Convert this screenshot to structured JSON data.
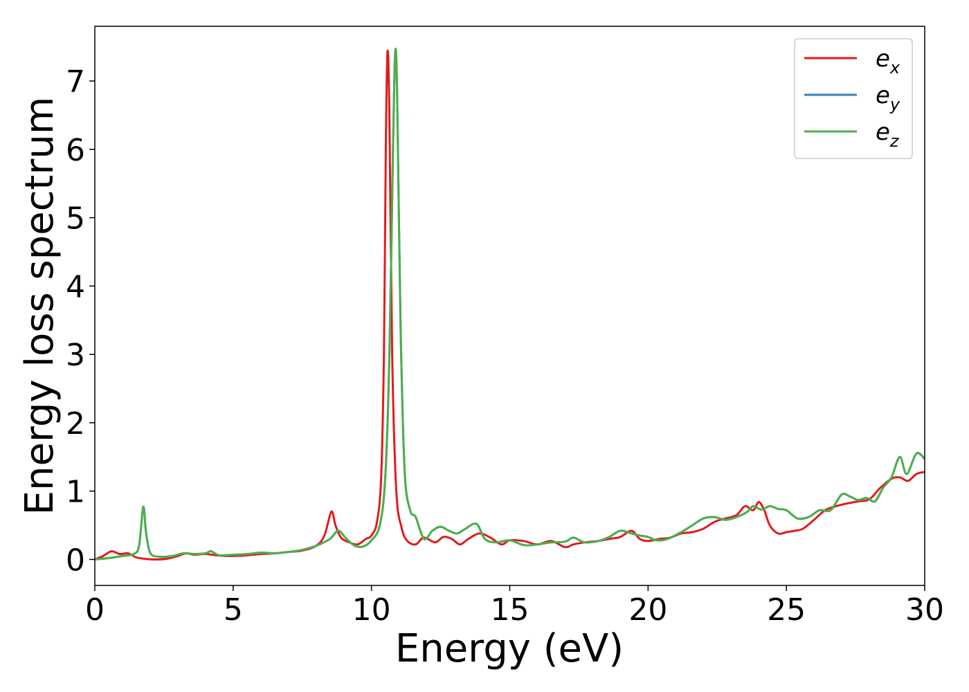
{
  "chart_data": {
    "type": "line",
    "title": "",
    "xlabel": "Energy (eV)",
    "ylabel": "Energy loss spectrum",
    "xlim": [
      0,
      30
    ],
    "ylim": [
      -0.38,
      7.8
    ],
    "xticks": [
      0,
      5,
      10,
      15,
      20,
      25,
      30
    ],
    "yticks": [
      0,
      1,
      2,
      3,
      4,
      5,
      6,
      7
    ],
    "grid": false,
    "legend_position": "top-right",
    "series": [
      {
        "name": "e",
        "sub": "x",
        "color": "#e41a1c",
        "points": [
          [
            0,
            0
          ],
          [
            0.3,
            0.05
          ],
          [
            0.6,
            0.12
          ],
          [
            0.9,
            0.08
          ],
          [
            1.2,
            0.09
          ],
          [
            1.5,
            0.03
          ],
          [
            1.8,
            0.01
          ],
          [
            2.2,
            0.0
          ],
          [
            2.6,
            0.01
          ],
          [
            3.0,
            0.05
          ],
          [
            3.3,
            0.09
          ],
          [
            3.6,
            0.07
          ],
          [
            4.0,
            0.08
          ],
          [
            4.4,
            0.06
          ],
          [
            4.8,
            0.05
          ],
          [
            5.5,
            0.06
          ],
          [
            6.0,
            0.08
          ],
          [
            6.5,
            0.09
          ],
          [
            7.0,
            0.11
          ],
          [
            7.5,
            0.13
          ],
          [
            8.0,
            0.2
          ],
          [
            8.3,
            0.35
          ],
          [
            8.55,
            0.7
          ],
          [
            8.7,
            0.5
          ],
          [
            8.9,
            0.32
          ],
          [
            9.2,
            0.25
          ],
          [
            9.5,
            0.22
          ],
          [
            9.8,
            0.3
          ],
          [
            10.0,
            0.35
          ],
          [
            10.2,
            0.55
          ],
          [
            10.35,
            1.2
          ],
          [
            10.45,
            3.0
          ],
          [
            10.52,
            6.0
          ],
          [
            10.58,
            7.43
          ],
          [
            10.65,
            6.5
          ],
          [
            10.75,
            3.0
          ],
          [
            10.9,
            1.0
          ],
          [
            11.1,
            0.45
          ],
          [
            11.3,
            0.27
          ],
          [
            11.6,
            0.22
          ],
          [
            11.9,
            0.32
          ],
          [
            12.3,
            0.25
          ],
          [
            12.6,
            0.33
          ],
          [
            12.9,
            0.3
          ],
          [
            13.2,
            0.22
          ],
          [
            13.5,
            0.3
          ],
          [
            13.9,
            0.38
          ],
          [
            14.3,
            0.32
          ],
          [
            14.7,
            0.22
          ],
          [
            15.0,
            0.28
          ],
          [
            15.5,
            0.27
          ],
          [
            16.0,
            0.22
          ],
          [
            16.5,
            0.27
          ],
          [
            17.0,
            0.18
          ],
          [
            17.3,
            0.22
          ],
          [
            17.7,
            0.25
          ],
          [
            18.2,
            0.27
          ],
          [
            18.6,
            0.3
          ],
          [
            19.0,
            0.33
          ],
          [
            19.4,
            0.42
          ],
          [
            19.7,
            0.3
          ],
          [
            20.0,
            0.27
          ],
          [
            20.4,
            0.3
          ],
          [
            20.8,
            0.32
          ],
          [
            21.2,
            0.38
          ],
          [
            21.6,
            0.4
          ],
          [
            22.0,
            0.45
          ],
          [
            22.4,
            0.55
          ],
          [
            22.8,
            0.6
          ],
          [
            23.2,
            0.65
          ],
          [
            23.5,
            0.78
          ],
          [
            23.8,
            0.72
          ],
          [
            24.0,
            0.84
          ],
          [
            24.2,
            0.72
          ],
          [
            24.4,
            0.5
          ],
          [
            24.7,
            0.38
          ],
          [
            25.0,
            0.4
          ],
          [
            25.3,
            0.42
          ],
          [
            25.6,
            0.45
          ],
          [
            26.0,
            0.58
          ],
          [
            26.4,
            0.72
          ],
          [
            26.8,
            0.78
          ],
          [
            27.2,
            0.82
          ],
          [
            27.6,
            0.85
          ],
          [
            28.0,
            0.88
          ],
          [
            28.4,
            1.05
          ],
          [
            28.8,
            1.18
          ],
          [
            29.1,
            1.2
          ],
          [
            29.4,
            1.15
          ],
          [
            29.7,
            1.25
          ],
          [
            30.0,
            1.28
          ]
        ]
      },
      {
        "name": "e",
        "sub": "y",
        "color": "#377eb8",
        "points": [
          [
            0,
            0
          ],
          [
            0.5,
            0.02
          ],
          [
            1.0,
            0.05
          ],
          [
            1.4,
            0.08
          ],
          [
            1.6,
            0.2
          ],
          [
            1.75,
            0.77
          ],
          [
            1.85,
            0.4
          ],
          [
            2.0,
            0.1
          ],
          [
            2.3,
            0.04
          ],
          [
            2.8,
            0.05
          ],
          [
            3.2,
            0.09
          ],
          [
            3.6,
            0.08
          ],
          [
            4.0,
            0.09
          ],
          [
            4.2,
            0.12
          ],
          [
            4.5,
            0.06
          ],
          [
            5.0,
            0.07
          ],
          [
            5.5,
            0.08
          ],
          [
            6.0,
            0.1
          ],
          [
            6.5,
            0.09
          ],
          [
            7.0,
            0.11
          ],
          [
            7.5,
            0.14
          ],
          [
            8.0,
            0.2
          ],
          [
            8.5,
            0.3
          ],
          [
            8.8,
            0.42
          ],
          [
            9.1,
            0.3
          ],
          [
            9.4,
            0.2
          ],
          [
            9.7,
            0.19
          ],
          [
            10.0,
            0.28
          ],
          [
            10.3,
            0.5
          ],
          [
            10.5,
            1.2
          ],
          [
            10.65,
            3.0
          ],
          [
            10.78,
            6.0
          ],
          [
            10.86,
            7.42
          ],
          [
            10.93,
            6.8
          ],
          [
            11.05,
            3.5
          ],
          [
            11.2,
            1.3
          ],
          [
            11.4,
            0.72
          ],
          [
            11.6,
            0.62
          ],
          [
            11.9,
            0.3
          ],
          [
            12.2,
            0.42
          ],
          [
            12.5,
            0.48
          ],
          [
            12.8,
            0.42
          ],
          [
            13.1,
            0.38
          ],
          [
            13.4,
            0.45
          ],
          [
            13.8,
            0.52
          ],
          [
            14.1,
            0.3
          ],
          [
            14.5,
            0.25
          ],
          [
            15.0,
            0.28
          ],
          [
            15.5,
            0.21
          ],
          [
            16.0,
            0.22
          ],
          [
            16.5,
            0.25
          ],
          [
            17.0,
            0.26
          ],
          [
            17.3,
            0.32
          ],
          [
            17.7,
            0.25
          ],
          [
            18.2,
            0.27
          ],
          [
            18.6,
            0.33
          ],
          [
            19.0,
            0.42
          ],
          [
            19.4,
            0.38
          ],
          [
            19.7,
            0.35
          ],
          [
            20.0,
            0.33
          ],
          [
            20.3,
            0.28
          ],
          [
            20.7,
            0.3
          ],
          [
            21.2,
            0.4
          ],
          [
            21.6,
            0.5
          ],
          [
            22.0,
            0.6
          ],
          [
            22.4,
            0.62
          ],
          [
            22.8,
            0.58
          ],
          [
            23.2,
            0.62
          ],
          [
            23.6,
            0.7
          ],
          [
            23.8,
            0.78
          ],
          [
            24.1,
            0.73
          ],
          [
            24.4,
            0.78
          ],
          [
            24.7,
            0.74
          ],
          [
            25.0,
            0.72
          ],
          [
            25.4,
            0.6
          ],
          [
            25.8,
            0.62
          ],
          [
            26.2,
            0.72
          ],
          [
            26.6,
            0.72
          ],
          [
            27.0,
            0.95
          ],
          [
            27.3,
            0.92
          ],
          [
            27.6,
            0.87
          ],
          [
            27.9,
            0.9
          ],
          [
            28.2,
            0.85
          ],
          [
            28.5,
            1.05
          ],
          [
            28.8,
            1.2
          ],
          [
            29.1,
            1.5
          ],
          [
            29.35,
            1.25
          ],
          [
            29.7,
            1.55
          ],
          [
            30.0,
            1.47
          ]
        ]
      },
      {
        "name": "e",
        "sub": "z",
        "color": "#4daf4a",
        "points": [
          [
            0,
            0
          ],
          [
            0.5,
            0.02
          ],
          [
            1.0,
            0.05
          ],
          [
            1.4,
            0.08
          ],
          [
            1.6,
            0.2
          ],
          [
            1.75,
            0.77
          ],
          [
            1.85,
            0.4
          ],
          [
            2.0,
            0.1
          ],
          [
            2.3,
            0.04
          ],
          [
            2.8,
            0.05
          ],
          [
            3.2,
            0.09
          ],
          [
            3.6,
            0.08
          ],
          [
            4.0,
            0.09
          ],
          [
            4.2,
            0.12
          ],
          [
            4.5,
            0.06
          ],
          [
            5.0,
            0.07
          ],
          [
            5.5,
            0.08
          ],
          [
            6.0,
            0.1
          ],
          [
            6.5,
            0.09
          ],
          [
            7.0,
            0.11
          ],
          [
            7.5,
            0.14
          ],
          [
            8.0,
            0.2
          ],
          [
            8.5,
            0.3
          ],
          [
            8.8,
            0.42
          ],
          [
            9.1,
            0.3
          ],
          [
            9.4,
            0.2
          ],
          [
            9.7,
            0.19
          ],
          [
            10.0,
            0.28
          ],
          [
            10.3,
            0.5
          ],
          [
            10.5,
            1.2
          ],
          [
            10.65,
            3.0
          ],
          [
            10.78,
            6.0
          ],
          [
            10.86,
            7.42
          ],
          [
            10.93,
            6.8
          ],
          [
            11.05,
            3.5
          ],
          [
            11.2,
            1.3
          ],
          [
            11.4,
            0.72
          ],
          [
            11.6,
            0.62
          ],
          [
            11.9,
            0.3
          ],
          [
            12.2,
            0.42
          ],
          [
            12.5,
            0.48
          ],
          [
            12.8,
            0.42
          ],
          [
            13.1,
            0.38
          ],
          [
            13.4,
            0.45
          ],
          [
            13.8,
            0.52
          ],
          [
            14.1,
            0.3
          ],
          [
            14.5,
            0.25
          ],
          [
            15.0,
            0.28
          ],
          [
            15.5,
            0.21
          ],
          [
            16.0,
            0.22
          ],
          [
            16.5,
            0.25
          ],
          [
            17.0,
            0.26
          ],
          [
            17.3,
            0.32
          ],
          [
            17.7,
            0.25
          ],
          [
            18.2,
            0.27
          ],
          [
            18.6,
            0.33
          ],
          [
            19.0,
            0.42
          ],
          [
            19.4,
            0.38
          ],
          [
            19.7,
            0.35
          ],
          [
            20.0,
            0.33
          ],
          [
            20.3,
            0.28
          ],
          [
            20.7,
            0.3
          ],
          [
            21.2,
            0.4
          ],
          [
            21.6,
            0.5
          ],
          [
            22.0,
            0.6
          ],
          [
            22.4,
            0.62
          ],
          [
            22.8,
            0.58
          ],
          [
            23.2,
            0.62
          ],
          [
            23.6,
            0.7
          ],
          [
            23.8,
            0.78
          ],
          [
            24.1,
            0.73
          ],
          [
            24.4,
            0.78
          ],
          [
            24.7,
            0.74
          ],
          [
            25.0,
            0.72
          ],
          [
            25.4,
            0.6
          ],
          [
            25.8,
            0.62
          ],
          [
            26.2,
            0.72
          ],
          [
            26.6,
            0.72
          ],
          [
            27.0,
            0.95
          ],
          [
            27.3,
            0.92
          ],
          [
            27.6,
            0.87
          ],
          [
            27.9,
            0.9
          ],
          [
            28.2,
            0.85
          ],
          [
            28.5,
            1.05
          ],
          [
            28.8,
            1.2
          ],
          [
            29.1,
            1.5
          ],
          [
            29.35,
            1.25
          ],
          [
            29.7,
            1.55
          ],
          [
            30.0,
            1.47
          ]
        ]
      }
    ]
  }
}
